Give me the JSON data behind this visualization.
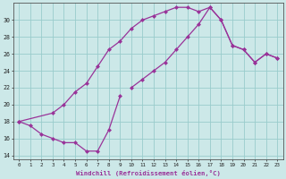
{
  "xlabel": "Windchill (Refroidissement éolien,°C)",
  "bg_color": "#cce8e8",
  "grid_color": "#99cccc",
  "line_color": "#993399",
  "xlim": [
    -0.5,
    23.5
  ],
  "ylim": [
    13.5,
    32
  ],
  "xticks": [
    0,
    1,
    2,
    3,
    4,
    5,
    6,
    7,
    8,
    9,
    10,
    11,
    12,
    13,
    14,
    15,
    16,
    17,
    18,
    19,
    20,
    21,
    22,
    23
  ],
  "yticks": [
    14,
    16,
    18,
    20,
    22,
    24,
    26,
    28,
    30
  ],
  "lower_x": [
    0,
    1,
    2,
    3,
    4,
    5,
    6,
    7,
    8,
    9
  ],
  "lower_y": [
    18,
    17.5,
    16.5,
    16,
    15.5,
    15.5,
    14.5,
    14.5,
    17,
    21
  ],
  "upper_x": [
    0,
    3,
    4,
    5,
    6,
    7,
    8,
    9,
    10,
    11,
    12,
    13,
    14,
    15,
    16,
    17,
    18,
    19,
    20,
    21,
    22,
    23
  ],
  "upper_y": [
    18,
    19,
    20,
    21.5,
    22.5,
    24.5,
    26.5,
    27.5,
    29,
    30,
    30.5,
    31,
    31.5,
    31.5,
    31,
    31.5,
    30,
    27,
    26.5,
    25,
    26,
    25.5
  ],
  "mid_x": [
    10,
    11,
    12,
    13,
    14,
    15,
    16,
    17,
    18,
    19,
    20,
    21,
    22,
    23
  ],
  "mid_y": [
    22,
    23,
    24,
    25,
    26.5,
    28,
    29.5,
    31.5,
    30,
    27,
    26.5,
    25,
    26,
    25.5
  ]
}
